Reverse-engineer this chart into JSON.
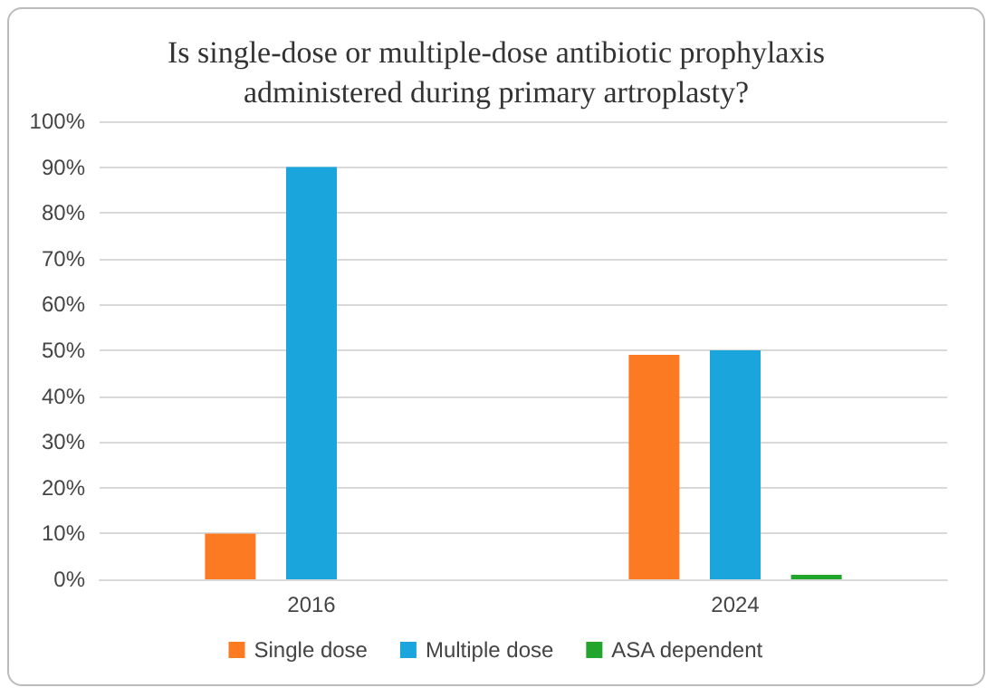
{
  "chart_data": {
    "type": "bar",
    "title": "Is single-dose or multiple-dose antibiotic prophylaxis administered during primary artroplasty?",
    "categories": [
      "2016",
      "2024"
    ],
    "series": [
      {
        "name": "Single dose",
        "color": "#fb7a22",
        "values": [
          10,
          49
        ]
      },
      {
        "name": "Multiple dose",
        "color": "#1aa6dc",
        "values": [
          90,
          50
        ]
      },
      {
        "name": "ASA dependent",
        "color": "#22a52c",
        "values": [
          0,
          1
        ]
      }
    ],
    "ylim": [
      0,
      100
    ],
    "yticks": [
      {
        "value": 0,
        "label": "0%"
      },
      {
        "value": 10,
        "label": "10%"
      },
      {
        "value": 20,
        "label": "20%"
      },
      {
        "value": 30,
        "label": "30%"
      },
      {
        "value": 40,
        "label": "40%"
      },
      {
        "value": 50,
        "label": "50%"
      },
      {
        "value": 60,
        "label": "60%"
      },
      {
        "value": 70,
        "label": "70%"
      },
      {
        "value": 80,
        "label": "80%"
      },
      {
        "value": 90,
        "label": "90%"
      },
      {
        "value": 100,
        "label": "100%"
      }
    ],
    "grid": "y",
    "legend": "bottom"
  }
}
